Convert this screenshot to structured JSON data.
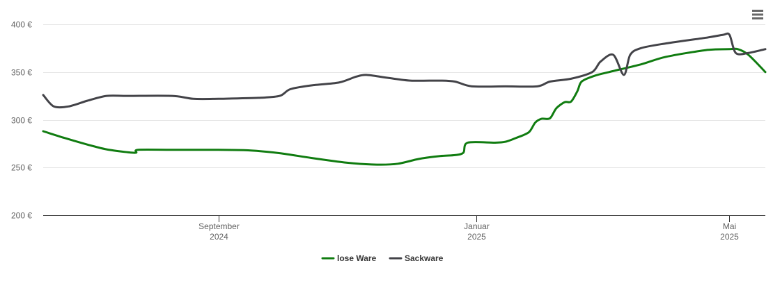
{
  "chart_data": {
    "type": "line",
    "y_unit": "€",
    "yticks": [
      "200 €",
      "250 €",
      "300 €",
      "350 €",
      "400 €"
    ],
    "ytick_values": [
      200,
      250,
      300,
      350,
      400
    ],
    "ylim": [
      200,
      400
    ],
    "xlim": [
      "2024-06-10",
      "2025-05-18"
    ],
    "xticks": [
      {
        "date": "2024-09-01",
        "line1": "September",
        "line2": "2024"
      },
      {
        "date": "2025-01-01",
        "line1": "Januar",
        "line2": "2025"
      },
      {
        "date": "2025-05-01",
        "line1": "Mai",
        "line2": "2025"
      }
    ],
    "grid": true,
    "legend_position": "bottom-center",
    "colors": {
      "lose_ware": "#107c10",
      "sackware": "#434348",
      "axis": "#333333",
      "grid": "#e6e6e6"
    },
    "series": [
      {
        "name": "lose Ware",
        "color": "#107c10",
        "points": [
          [
            "2024-06-10",
            288
          ],
          [
            "2024-06-20",
            281
          ],
          [
            "2024-07-01",
            274
          ],
          [
            "2024-07-10",
            269
          ],
          [
            "2024-07-20",
            266
          ],
          [
            "2024-07-24",
            265.5
          ],
          [
            "2024-07-25",
            268.5
          ],
          [
            "2024-08-10",
            268.5
          ],
          [
            "2024-09-01",
            268.5
          ],
          [
            "2024-09-15",
            268
          ],
          [
            "2024-09-30",
            265
          ],
          [
            "2024-10-15",
            260
          ],
          [
            "2024-11-01",
            255
          ],
          [
            "2024-11-15",
            253
          ],
          [
            "2024-11-25",
            254
          ],
          [
            "2024-12-05",
            259
          ],
          [
            "2024-12-15",
            262
          ],
          [
            "2024-12-22",
            263
          ],
          [
            "2024-12-26",
            265.5
          ],
          [
            "2024-12-28",
            276
          ],
          [
            "2025-01-10",
            276
          ],
          [
            "2025-01-15",
            277
          ],
          [
            "2025-01-20",
            281
          ],
          [
            "2025-01-26",
            287
          ],
          [
            "2025-01-29",
            297
          ],
          [
            "2025-02-01",
            301
          ],
          [
            "2025-02-05",
            301.5
          ],
          [
            "2025-02-08",
            312
          ],
          [
            "2025-02-12",
            318.5
          ],
          [
            "2025-02-15",
            319
          ],
          [
            "2025-02-18",
            330
          ],
          [
            "2025-02-20",
            340
          ],
          [
            "2025-02-26",
            346
          ],
          [
            "2025-03-05",
            350
          ],
          [
            "2025-03-20",
            358
          ],
          [
            "2025-04-01",
            366
          ],
          [
            "2025-04-20",
            373
          ],
          [
            "2025-05-01",
            374
          ],
          [
            "2025-05-05",
            374
          ],
          [
            "2025-05-10",
            368
          ],
          [
            "2025-05-18",
            350
          ]
        ]
      },
      {
        "name": "Sackware",
        "color": "#434348",
        "points": [
          [
            "2024-06-10",
            326
          ],
          [
            "2024-06-15",
            314
          ],
          [
            "2024-06-22",
            314
          ],
          [
            "2024-07-01",
            320
          ],
          [
            "2024-07-10",
            325
          ],
          [
            "2024-07-20",
            325
          ],
          [
            "2024-08-10",
            325
          ],
          [
            "2024-08-20",
            322
          ],
          [
            "2024-09-01",
            322
          ],
          [
            "2024-09-20",
            323
          ],
          [
            "2024-09-30",
            325
          ],
          [
            "2024-10-05",
            332
          ],
          [
            "2024-10-15",
            336
          ],
          [
            "2024-10-28",
            339
          ],
          [
            "2024-11-05",
            345
          ],
          [
            "2024-11-10",
            347
          ],
          [
            "2024-11-20",
            344
          ],
          [
            "2024-12-01",
            341
          ],
          [
            "2024-12-15",
            341
          ],
          [
            "2024-12-22",
            340
          ],
          [
            "2024-12-30",
            335
          ],
          [
            "2025-01-15",
            335
          ],
          [
            "2025-01-30",
            335
          ],
          [
            "2025-02-05",
            340
          ],
          [
            "2025-02-15",
            343
          ],
          [
            "2025-02-25",
            350
          ],
          [
            "2025-03-01",
            361
          ],
          [
            "2025-03-07",
            368
          ],
          [
            "2025-03-12",
            347
          ],
          [
            "2025-03-15",
            368
          ],
          [
            "2025-03-20",
            375
          ],
          [
            "2025-04-01",
            380
          ],
          [
            "2025-04-20",
            386
          ],
          [
            "2025-04-28",
            389
          ],
          [
            "2025-05-01",
            389
          ],
          [
            "2025-05-04",
            370
          ],
          [
            "2025-05-10",
            370
          ],
          [
            "2025-05-18",
            374
          ]
        ]
      }
    ]
  },
  "menu_icon": "hamburger-menu-icon"
}
